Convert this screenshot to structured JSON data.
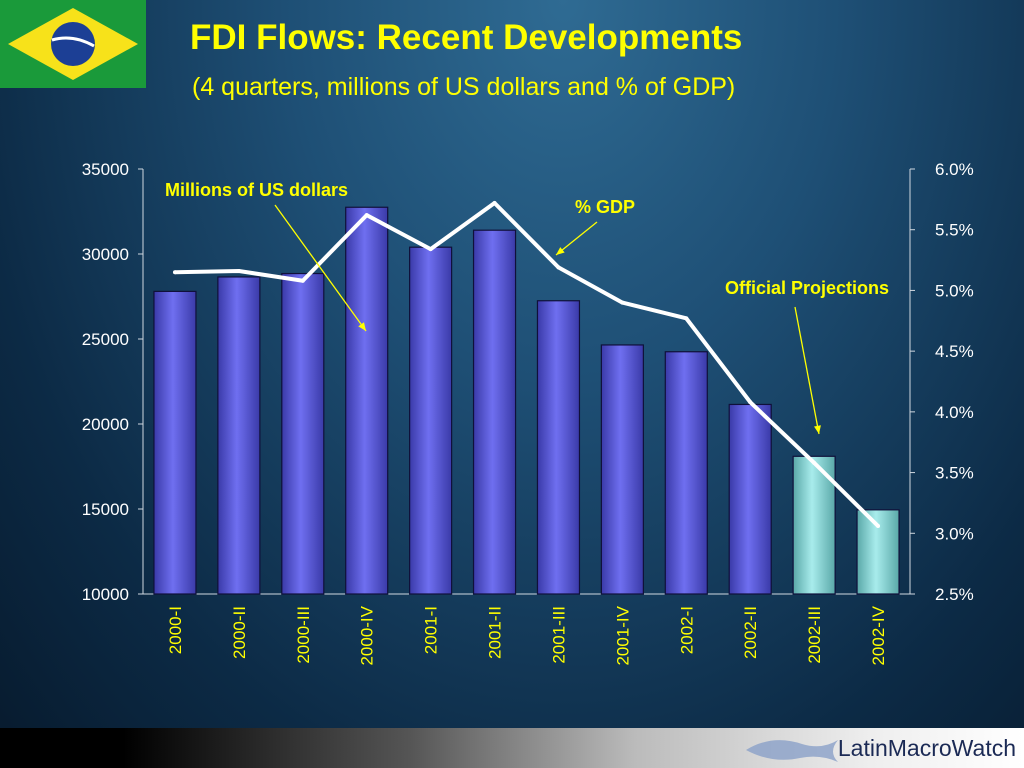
{
  "slide": {
    "title": "FDI Flows: Recent Developments",
    "subtitle": "(4 quarters, millions of US dollars and % of GDP)",
    "brand": "LatinMacroWatch"
  },
  "chart_data": {
    "type": "bar",
    "categories": [
      "2000-I",
      "2000-II",
      "2000-III",
      "2000-IV",
      "2001-I",
      "2001-II",
      "2001-III",
      "2001-IV",
      "2002-I",
      "2002-II",
      "2002-III",
      "2002-IV"
    ],
    "series": [
      {
        "name": "Millions of US dollars",
        "values": [
          27800,
          28650,
          28850,
          32750,
          30400,
          31400,
          27250,
          24650,
          24250,
          21150,
          18100,
          14950
        ],
        "projected": [
          false,
          false,
          false,
          false,
          false,
          false,
          false,
          false,
          false,
          false,
          true,
          true
        ]
      },
      {
        "name": "% GDP",
        "type": "line",
        "values": [
          5.15,
          5.16,
          5.08,
          5.62,
          5.34,
          5.72,
          5.19,
          4.9,
          4.77,
          4.08,
          3.58,
          3.06
        ]
      }
    ],
    "y_left": {
      "ylim": [
        10000,
        35000
      ],
      "ticks": [
        "35000",
        "30000",
        "25000",
        "20000",
        "15000",
        "10000"
      ],
      "tick_values": [
        35000,
        30000,
        25000,
        20000,
        15000,
        10000
      ]
    },
    "y_right": {
      "ylim": [
        2.5,
        6.0
      ],
      "ticks": [
        "6.0%",
        "5.5%",
        "5.0%",
        "4.5%",
        "4.0%",
        "3.5%",
        "3.0%",
        "2.5%"
      ],
      "tick_values": [
        6.0,
        5.5,
        5.0,
        4.5,
        4.0,
        3.5,
        3.0,
        2.5
      ]
    },
    "annotations": [
      {
        "text": "Millions of US dollars"
      },
      {
        "text": "% GDP"
      },
      {
        "text": "Official Projections"
      }
    ],
    "colors": {
      "bar": "#6f6ff0",
      "bar_projected": "#a8ecec",
      "line": "#ffffff",
      "annotation": "#ffff00",
      "axis_text": "#ffffff"
    }
  }
}
